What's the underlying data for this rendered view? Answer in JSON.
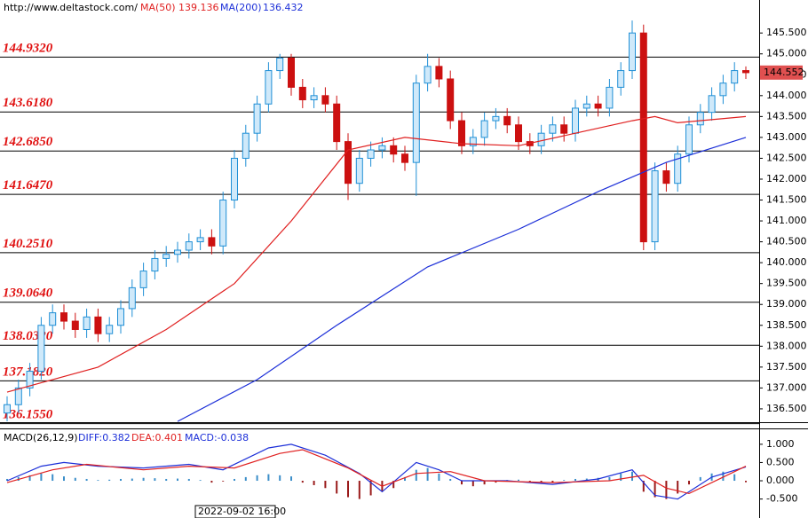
{
  "header": {
    "url": "http://www.deltastock.com/"
  },
  "chart_data": [
    {
      "type": "candlestick",
      "ylim": [
        136.18,
        146.29
      ],
      "yticks": [
        {
          "value": 136.5,
          "label": "136.500"
        },
        {
          "value": 137,
          "label": "137.000"
        },
        {
          "value": 137.5,
          "label": "137.500"
        },
        {
          "value": 138,
          "label": "138.000"
        },
        {
          "value": 138.5,
          "label": "138.500"
        },
        {
          "value": 139,
          "label": "139.000"
        },
        {
          "value": 139.5,
          "label": "139.500"
        },
        {
          "value": 140,
          "label": "140.000"
        },
        {
          "value": 140.5,
          "label": "140.500"
        },
        {
          "value": 141,
          "label": "141.000"
        },
        {
          "value": 141.5,
          "label": "141.500"
        },
        {
          "value": 142,
          "label": "142.000"
        },
        {
          "value": 142.5,
          "label": "142.500"
        },
        {
          "value": 143,
          "label": "143.000"
        },
        {
          "value": 143.5,
          "label": "143.500"
        },
        {
          "value": 144,
          "label": "144.000"
        },
        {
          "value": 144.5,
          "label": "144.500"
        },
        {
          "value": 145,
          "label": "145.000"
        },
        {
          "value": 145.5,
          "label": "145.500"
        }
      ],
      "levels": [
        {
          "value": 144.932,
          "label": "144.9320"
        },
        {
          "value": 143.618,
          "label": "143.6180"
        },
        {
          "value": 142.685,
          "label": "142.6850"
        },
        {
          "value": 141.647,
          "label": "141.6470"
        },
        {
          "value": 140.251,
          "label": "140.2510"
        },
        {
          "value": 139.064,
          "label": "139.0640"
        },
        {
          "value": 138.032,
          "label": "138.0320"
        },
        {
          "value": 137.182,
          "label": "137.1820"
        },
        {
          "value": 136.155,
          "label": "136.1550"
        }
      ],
      "last_price": 144.552,
      "up_color": "#1f8fd6",
      "down_color": "#cc1010",
      "open": [
        136.4,
        136.6,
        137.0,
        137.4,
        138.5,
        138.8,
        138.6,
        138.4,
        138.7,
        138.3,
        138.5,
        138.9,
        139.4,
        139.8,
        140.1,
        140.2,
        140.3,
        140.5,
        140.6,
        140.4,
        141.5,
        142.5,
        143.1,
        143.8,
        144.6,
        144.9,
        144.2,
        143.9,
        144.0,
        143.8,
        142.9,
        141.9,
        142.5,
        142.7,
        142.8,
        142.6,
        142.4,
        144.3,
        144.7,
        144.4,
        143.4,
        142.8,
        143.0,
        143.4,
        143.5,
        143.3,
        142.9,
        142.8,
        143.1,
        143.3,
        143.1,
        143.7,
        143.8,
        143.7,
        144.2,
        144.6,
        145.5,
        140.5,
        142.2,
        141.9,
        142.6,
        143.3,
        143.6,
        144.0,
        144.3,
        144.6
      ],
      "high": [
        136.8,
        137.2,
        137.6,
        138.7,
        139.0,
        139.0,
        138.8,
        138.9,
        138.9,
        138.7,
        139.1,
        139.6,
        140.0,
        140.3,
        140.4,
        140.5,
        140.7,
        140.8,
        140.8,
        141.7,
        142.7,
        143.3,
        144.0,
        144.8,
        145.0,
        145.0,
        144.4,
        144.2,
        144.2,
        144.0,
        143.1,
        142.7,
        142.9,
        143.0,
        143.0,
        142.8,
        144.5,
        145.0,
        144.9,
        144.6,
        143.6,
        143.2,
        143.6,
        143.7,
        143.7,
        143.5,
        143.1,
        143.3,
        143.5,
        143.5,
        143.9,
        144.0,
        144.0,
        144.4,
        144.8,
        145.8,
        145.7,
        142.4,
        142.4,
        142.8,
        143.5,
        143.8,
        144.2,
        144.5,
        144.8,
        144.7
      ],
      "low": [
        136.2,
        136.4,
        136.8,
        137.2,
        138.3,
        138.4,
        138.2,
        138.2,
        138.1,
        138.1,
        138.3,
        138.7,
        139.2,
        139.6,
        139.9,
        140.0,
        140.1,
        140.3,
        140.2,
        140.2,
        141.3,
        142.3,
        142.9,
        143.6,
        144.4,
        144.0,
        143.7,
        143.7,
        143.6,
        142.7,
        141.5,
        141.7,
        142.3,
        142.5,
        142.4,
        142.2,
        141.6,
        144.1,
        144.2,
        143.2,
        142.6,
        142.6,
        142.8,
        143.2,
        143.1,
        142.7,
        142.6,
        142.6,
        142.9,
        142.9,
        142.9,
        143.5,
        143.5,
        143.5,
        144.0,
        144.4,
        140.3,
        140.3,
        141.7,
        141.7,
        142.4,
        143.1,
        143.4,
        143.8,
        144.1,
        144.4
      ],
      "close": [
        136.6,
        137.0,
        137.4,
        138.5,
        138.8,
        138.6,
        138.4,
        138.7,
        138.3,
        138.5,
        138.9,
        139.4,
        139.8,
        140.1,
        140.2,
        140.3,
        140.5,
        140.6,
        140.4,
        141.5,
        142.5,
        143.1,
        143.8,
        144.6,
        144.9,
        144.2,
        143.9,
        144.0,
        143.8,
        142.9,
        141.9,
        142.5,
        142.7,
        142.8,
        142.6,
        142.4,
        144.3,
        144.7,
        144.4,
        143.4,
        142.8,
        143.0,
        143.4,
        143.5,
        143.3,
        142.9,
        142.8,
        143.1,
        143.3,
        143.1,
        143.7,
        143.8,
        143.7,
        144.2,
        144.6,
        145.5,
        140.5,
        142.2,
        141.9,
        142.6,
        143.3,
        143.6,
        144.0,
        144.3,
        144.6,
        144.55
      ],
      "series": [
        {
          "name": "MA(50)",
          "current": 139.136,
          "color": "#e02020",
          "x": [
            0,
            8,
            14,
            20,
            25,
            30,
            35,
            40,
            45,
            50,
            55,
            57,
            59,
            65
          ],
          "values": [
            136.9,
            137.5,
            138.4,
            139.5,
            141.0,
            142.7,
            143.0,
            142.85,
            142.8,
            143.1,
            143.4,
            143.5,
            143.35,
            143.5
          ]
        },
        {
          "name": "MA(200)",
          "current": 136.432,
          "color": "#1c2fd8",
          "x": [
            15,
            22,
            29,
            37,
            45,
            52,
            58,
            65
          ],
          "values": [
            136.2,
            137.2,
            138.5,
            139.9,
            140.8,
            141.7,
            142.4,
            143.0
          ]
        }
      ]
    },
    {
      "type": "macd",
      "title": "MACD(26,12,9)",
      "diff_label": "DIFF:0.382",
      "dea_label": "DEA:0.401",
      "macd_label": "MACD:-0.038",
      "ylim": [
        -1.02,
        1.41
      ],
      "yticks": [
        {
          "value": 1,
          "label": "1.000"
        },
        {
          "value": 0.5,
          "label": "0.500"
        },
        {
          "value": 0,
          "label": "0.000"
        },
        {
          "value": -0.5,
          "label": "-0.500"
        }
      ],
      "x_cursor_label": "2022-09-02 16:00",
      "histogram": {
        "up_color": "#3b8ec9",
        "down_color": "#9a1a1a",
        "values": [
          0.05,
          0.1,
          0.15,
          0.2,
          0.18,
          0.12,
          0.08,
          0.05,
          0.02,
          0.03,
          0.05,
          0.06,
          0.08,
          0.07,
          0.05,
          0.06,
          0.05,
          0.02,
          -0.05,
          -0.02,
          0.05,
          0.1,
          0.15,
          0.18,
          0.15,
          0.12,
          -0.05,
          -0.12,
          -0.2,
          -0.35,
          -0.45,
          -0.5,
          -0.4,
          -0.3,
          -0.2,
          0.1,
          0.3,
          0.35,
          0.2,
          0.05,
          -0.1,
          -0.15,
          -0.1,
          -0.05,
          0.02,
          0.03,
          -0.03,
          -0.05,
          -0.04,
          0.02,
          0.05,
          0.06,
          0.08,
          0.1,
          0.2,
          0.25,
          -0.3,
          -0.45,
          -0.5,
          -0.35,
          -0.1,
          0.1,
          0.2,
          0.25,
          0.18,
          -0.04
        ]
      },
      "series": [
        {
          "name": "DIFF",
          "color": "#1c2fd8",
          "x": [
            0,
            3,
            5,
            8,
            12,
            16,
            19,
            23,
            25,
            28,
            31,
            33,
            36,
            38,
            40,
            44,
            48,
            52,
            55,
            57,
            59,
            62,
            65
          ],
          "values": [
            0.0,
            0.4,
            0.5,
            0.4,
            0.35,
            0.45,
            0.3,
            0.9,
            1.0,
            0.7,
            0.2,
            -0.3,
            0.5,
            0.3,
            0.0,
            0.0,
            -0.1,
            0.05,
            0.3,
            -0.4,
            -0.5,
            0.1,
            0.38
          ]
        },
        {
          "name": "DEA",
          "color": "#e02020",
          "x": [
            0,
            4,
            7,
            12,
            16,
            20,
            24,
            26,
            30,
            33,
            36,
            39,
            42,
            48,
            53,
            56,
            58,
            60,
            63,
            65
          ],
          "values": [
            -0.05,
            0.3,
            0.45,
            0.3,
            0.4,
            0.35,
            0.75,
            0.85,
            0.35,
            -0.15,
            0.2,
            0.25,
            0.0,
            -0.05,
            0.0,
            0.15,
            -0.2,
            -0.35,
            0.1,
            0.4
          ]
        }
      ]
    }
  ]
}
